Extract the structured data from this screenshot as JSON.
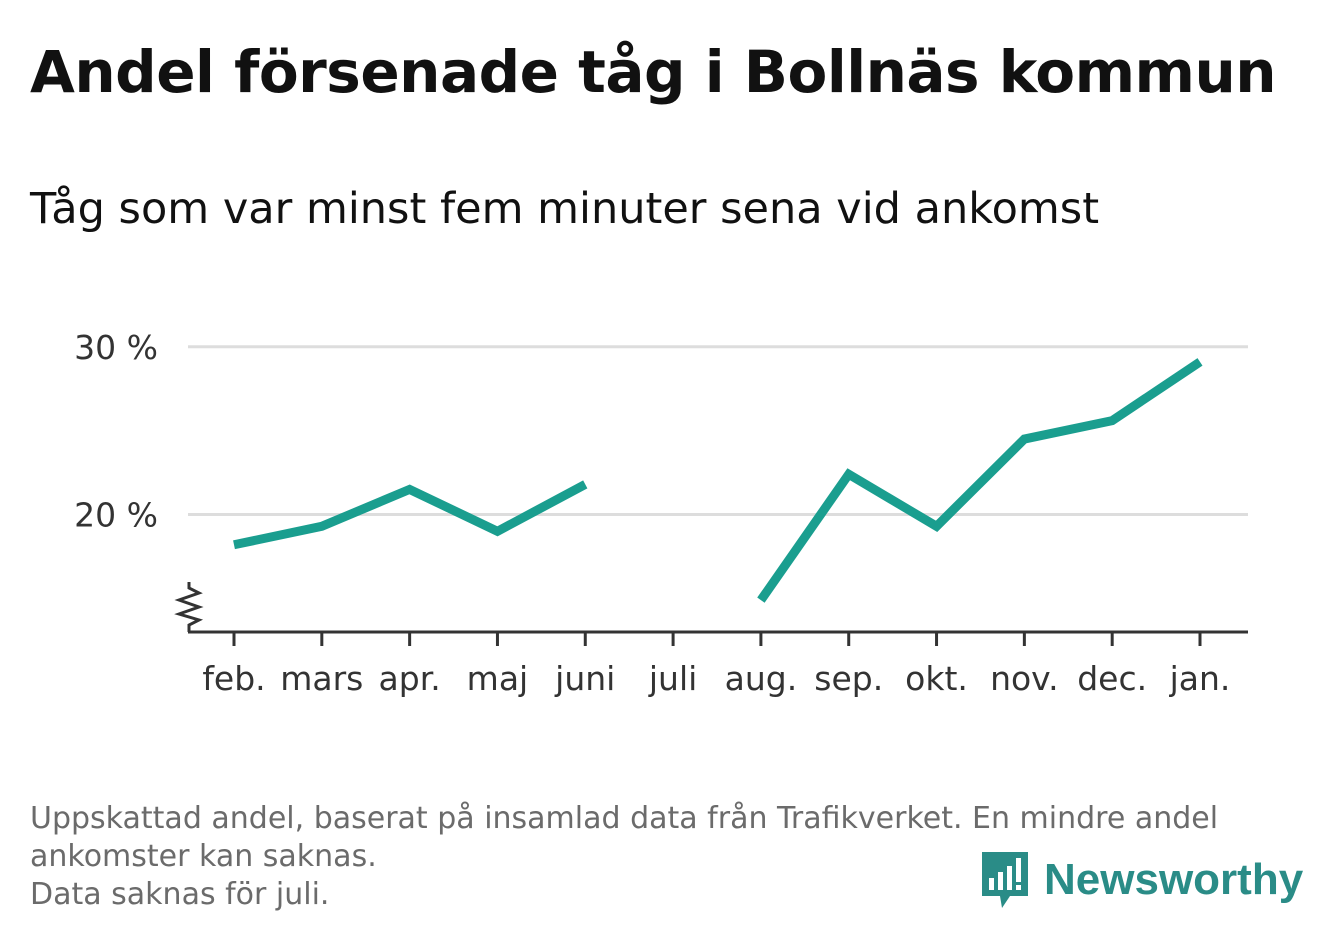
{
  "title": "Andel försenade tåg i Bollnäs kommun",
  "subtitle": "Tåg som var minst fem minuter sena vid ankomst",
  "notes": [
    "Uppskattad andel, baserat på insamlad data från Trafikverket. En mindre andel",
    "ankomster kan saknas.",
    "Data saknas för juli."
  ],
  "brand": {
    "name": "Newsworthy",
    "logo_icon": "newsworthy-chart-bubble-icon"
  },
  "colors": {
    "line": "#1a9e8f",
    "grid": "#dddddd",
    "axis": "#333333",
    "brand": "#2a8c87"
  },
  "chart_data": {
    "type": "line",
    "categories": [
      "feb.",
      "mars",
      "apr.",
      "maj",
      "juni",
      "juli",
      "aug.",
      "sep.",
      "okt.",
      "nov.",
      "dec.",
      "jan."
    ],
    "series": [
      {
        "values": [
          18.2,
          19.3,
          21.5,
          19.0,
          21.8,
          null,
          14.9,
          22.4,
          19.3,
          24.5,
          25.6,
          29.1
        ]
      }
    ],
    "yticks": [
      20,
      30
    ],
    "ytick_labels": [
      "20 %",
      "30 %"
    ],
    "ylim": [
      13.0,
      31.0
    ],
    "axis_break": true,
    "grid": true,
    "legend": "none"
  }
}
